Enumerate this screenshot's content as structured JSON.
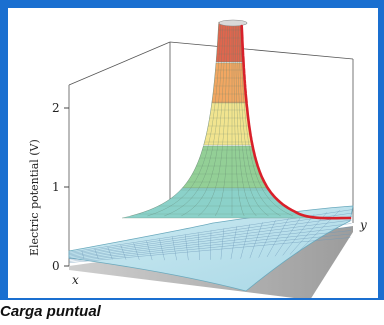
{
  "colors": {
    "frame": "#1a6fd0",
    "potential_curve": "#d8202a",
    "plane": "#bfe4ef",
    "band_red": "#e0664e",
    "band_orange": "#f2a762",
    "band_yellow": "#f1e48f",
    "band_green": "#93cf96",
    "band_teal": "#8bd1c9",
    "shadow": "#a9a9a9"
  },
  "caption": "Carga puntual",
  "chart_data": {
    "type": "surface",
    "title": "",
    "ylabel": "Electric potential (V)",
    "zlim": [
      0,
      2
    ],
    "z_ticks": [
      "0",
      "1",
      "2"
    ],
    "axis_labels": {
      "x": "x",
      "y": "y"
    },
    "grid": true,
    "surface": "potential of a point charge, V proportional to 1/r, peak above 2 V at the charge",
    "highlighted_curve": "potential along y through the charge"
  }
}
